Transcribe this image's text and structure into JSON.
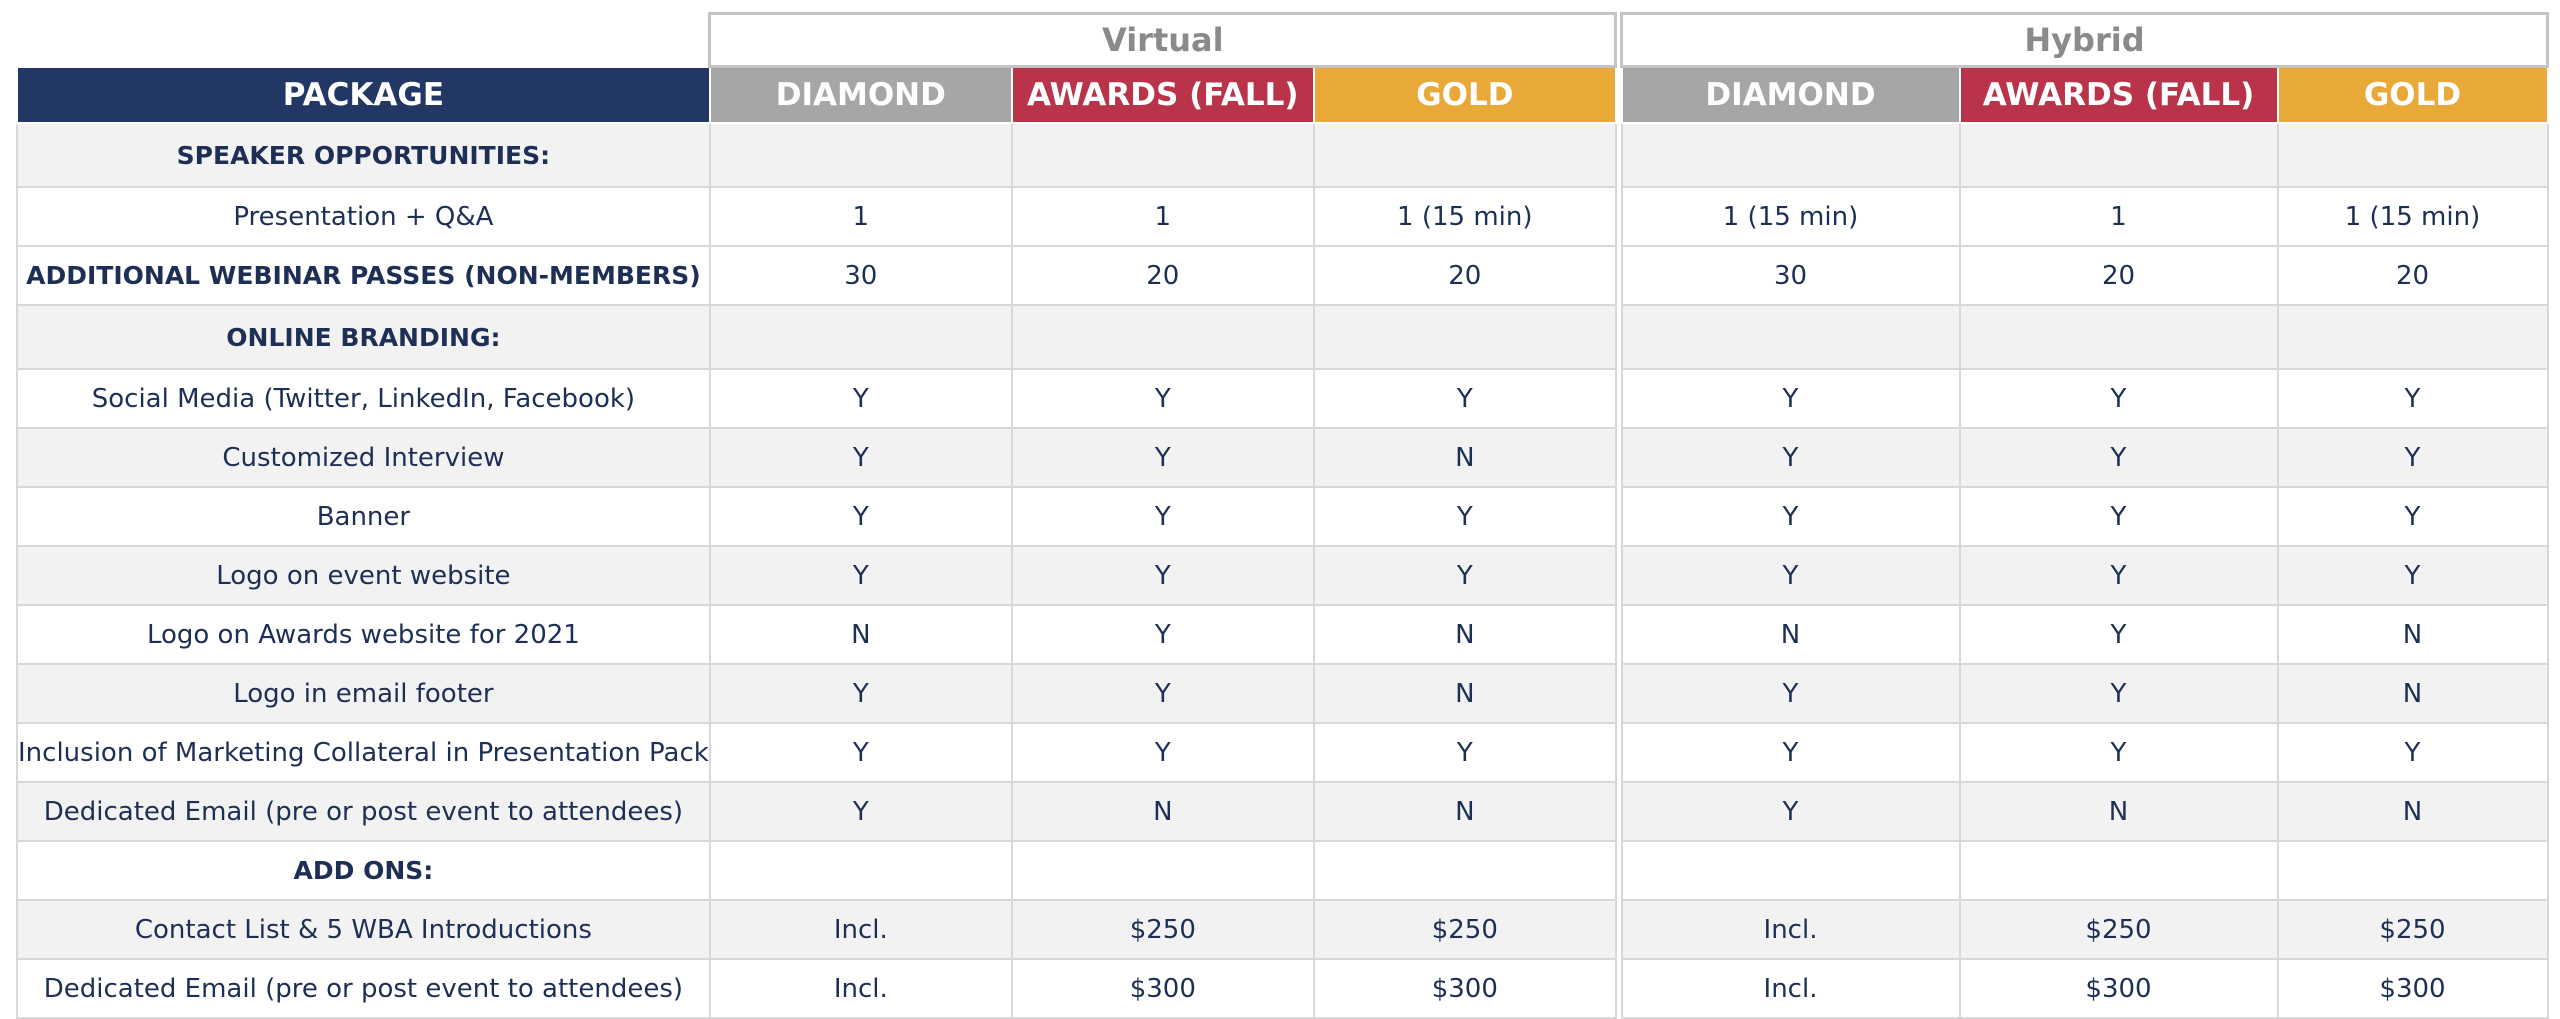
{
  "virtual": {
    "title": "Virtual",
    "header": {
      "package": "PACKAGE",
      "diamond": "DIAMOND",
      "awards": "AWARDS (FALL)",
      "gold": "GOLD"
    },
    "rows": [
      {
        "label": "SPEAKER OPPORTUNITIES:",
        "values": [
          "",
          "",
          ""
        ]
      },
      {
        "label": "Presentation + Q&A",
        "values": [
          "1",
          "1",
          "1 (15 min)"
        ]
      },
      {
        "label": "ADDITIONAL WEBINAR PASSES (NON-MEMBERS)",
        "values": [
          "30",
          "20",
          "20"
        ]
      },
      {
        "label": "ONLINE BRANDING:",
        "values": [
          "",
          "",
          ""
        ]
      },
      {
        "label": "Social Media (Twitter, LinkedIn, Facebook)",
        "values": [
          "Y",
          "Y",
          "Y"
        ]
      },
      {
        "label": "Customized Interview",
        "values": [
          "Y",
          "Y",
          "N"
        ]
      },
      {
        "label": "Banner",
        "values": [
          "Y",
          "Y",
          "Y"
        ]
      },
      {
        "label": "Logo on event website",
        "values": [
          "Y",
          "Y",
          "Y"
        ]
      },
      {
        "label": "Logo on Awards website for 2021",
        "values": [
          "N",
          "Y",
          "N"
        ]
      },
      {
        "label": "Logo in email footer",
        "values": [
          "Y",
          "Y",
          "N"
        ]
      },
      {
        "label": "Inclusion of Marketing Collateral in Presentation Pack",
        "values": [
          "Y",
          "Y",
          "Y"
        ]
      },
      {
        "label": "Dedicated Email (pre or post event to attendees)",
        "values": [
          "Y",
          "N",
          "N"
        ]
      },
      {
        "label": "ADD ONS:",
        "values": [
          "",
          "",
          ""
        ]
      },
      {
        "label": "Contact List & 5 WBA Introductions",
        "values": [
          "Incl.",
          "$250",
          "$250"
        ]
      },
      {
        "label": "Dedicated Email (pre or post event to attendees)",
        "values": [
          "Incl.",
          "$300",
          "$300"
        ]
      }
    ]
  },
  "hybrid": {
    "title": "Hybrid",
    "header": {
      "diamond": "DIAMOND",
      "awards": "AWARDS (FALL)",
      "gold": "GOLD"
    },
    "rows": [
      {
        "values": [
          "",
          "",
          ""
        ]
      },
      {
        "values": [
          "1 (15 min)",
          "1",
          "1 (15 min)"
        ]
      },
      {
        "values": [
          "30",
          "20",
          "20"
        ]
      },
      {
        "values": [
          "",
          "",
          ""
        ]
      },
      {
        "values": [
          "Y",
          "Y",
          "Y"
        ]
      },
      {
        "values": [
          "Y",
          "Y",
          "Y"
        ]
      },
      {
        "values": [
          "Y",
          "Y",
          "Y"
        ]
      },
      {
        "values": [
          "Y",
          "Y",
          "Y"
        ]
      },
      {
        "values": [
          "N",
          "Y",
          "N"
        ]
      },
      {
        "values": [
          "Y",
          "Y",
          "N"
        ]
      },
      {
        "values": [
          "Y",
          "Y",
          "Y"
        ]
      },
      {
        "values": [
          "Y",
          "N",
          "N"
        ]
      },
      {
        "values": [
          "",
          "",
          ""
        ]
      },
      {
        "values": [
          "Incl.",
          "$250",
          "$250"
        ]
      },
      {
        "values": [
          "Incl.",
          "$300",
          "$300"
        ]
      }
    ]
  },
  "colors": {
    "package_header": "#223763",
    "diamond": "#a6a6a6",
    "awards": "#b9334a",
    "gold": "#e9a938",
    "text": "#1e2f56"
  }
}
